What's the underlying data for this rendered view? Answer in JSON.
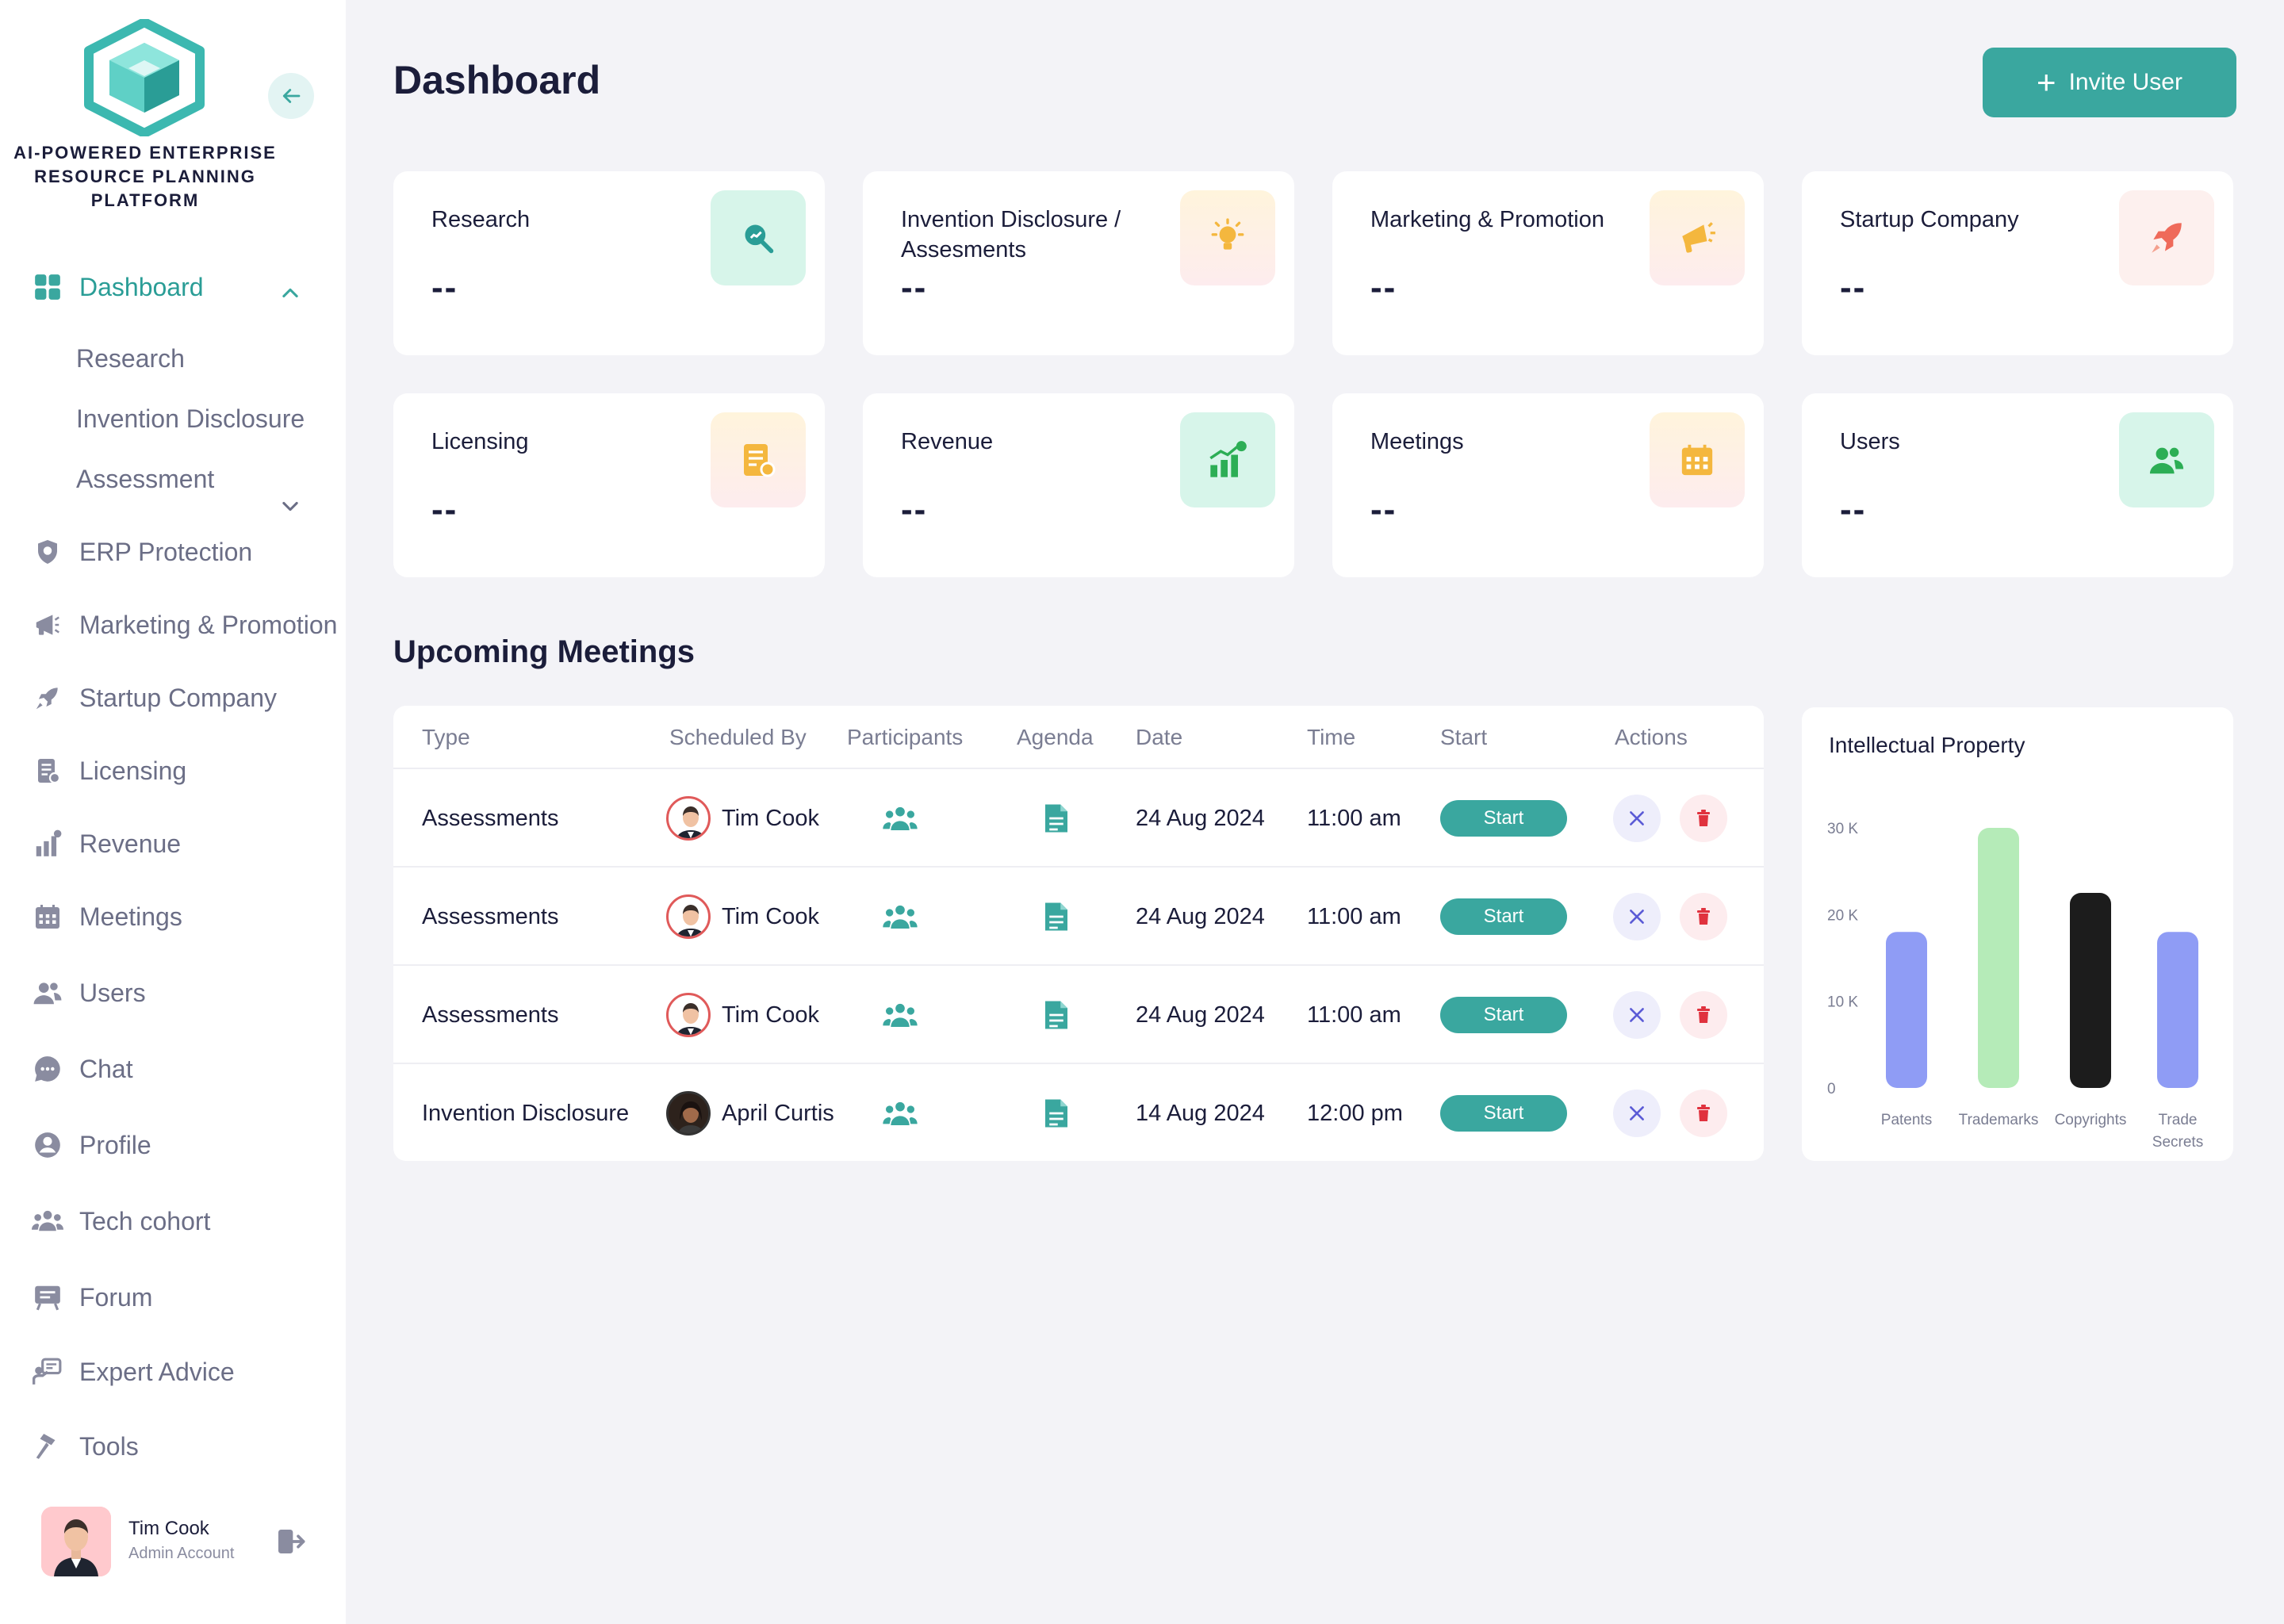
{
  "brand": {
    "line1": "AI-POWERED ENTERPRISE",
    "line2": "RESOURCE PLANNING",
    "line3": "PLATFORM",
    "accent": "#3aa79f"
  },
  "sidebar": {
    "dashboard": "Dashboard",
    "sub_items": [
      "Research",
      "Invention Disclosure",
      "Assessment"
    ],
    "items": [
      {
        "label": "ERP Protection",
        "icon": "shield-icon"
      },
      {
        "label": "Marketing & Promotion",
        "icon": "megaphone-icon"
      },
      {
        "label": "Startup Company",
        "icon": "rocket-icon"
      },
      {
        "label": "Licensing",
        "icon": "document-icon"
      },
      {
        "label": "Revenue",
        "icon": "bar-chart-icon"
      },
      {
        "label": "Meetings",
        "icon": "calendar-icon"
      },
      {
        "label": "Users",
        "icon": "users-icon"
      },
      {
        "label": "Chat",
        "icon": "chat-icon"
      },
      {
        "label": "Profile",
        "icon": "profile-icon"
      },
      {
        "label": "Tech cohort",
        "icon": "group-icon"
      },
      {
        "label": "Forum",
        "icon": "forum-icon"
      },
      {
        "label": "Expert Advice",
        "icon": "advice-icon"
      },
      {
        "label": "Tools",
        "icon": "hammer-icon"
      }
    ],
    "user": {
      "name": "Tim Cook",
      "role": "Admin Account"
    }
  },
  "header": {
    "title": "Dashboard",
    "invite_label": "Invite User"
  },
  "stats": [
    {
      "label": "Research",
      "value": "--",
      "icon": "search-trend-icon",
      "bg": "#d7f5ea",
      "color": "#2a9d96"
    },
    {
      "label": "Invention Disclosure / Assesments",
      "value": "--",
      "icon": "lightbulb-icon",
      "bg": "#fff1dc",
      "color": "#f4b73e"
    },
    {
      "label": "Marketing & Promotion",
      "value": "--",
      "icon": "megaphone-icon",
      "bg": "#fff1dc",
      "color": "#f4b73e"
    },
    {
      "label": "Startup Company",
      "value": "--",
      "icon": "rocket-icon",
      "bg": "#fdecea",
      "color": "#ef6a5a"
    },
    {
      "label": "Licensing",
      "value": "--",
      "icon": "document-icon",
      "bg": "#fff1dc",
      "color": "#f4b73e"
    },
    {
      "label": "Revenue",
      "value": "--",
      "icon": "bar-chart-icon",
      "bg": "#d7f5ea",
      "color": "#2cae55"
    },
    {
      "label": "Meetings",
      "value": "--",
      "icon": "calendar-icon",
      "bg": "#fff1dc",
      "color": "#f4b73e"
    },
    {
      "label": "Users",
      "value": "--",
      "icon": "users-icon",
      "bg": "#d7f5ea",
      "color": "#2cae55"
    }
  ],
  "meetings": {
    "title": "Upcoming Meetings",
    "columns": [
      "Type",
      "Scheduled By",
      "Participants",
      "Agenda",
      "Date",
      "Time",
      "Start",
      "Actions"
    ],
    "start_label": "Start",
    "rows": [
      {
        "type": "Assessments",
        "by": "Tim Cook",
        "date": "24 Aug 2024",
        "time": "11:00 am"
      },
      {
        "type": "Assessments",
        "by": "Tim Cook",
        "date": "24 Aug 2024",
        "time": "11:00 am"
      },
      {
        "type": "Assessments",
        "by": "Tim Cook",
        "date": "24 Aug 2024",
        "time": "11:00 am"
      },
      {
        "type": "Invention Disclosure",
        "by": "April Curtis",
        "date": "14 Aug 2024",
        "time": "12:00 pm"
      }
    ]
  },
  "chart_data": {
    "type": "bar",
    "title": "Intellectual Property",
    "categories": [
      "Patents",
      "Trademarks",
      "Copyrights",
      "Trade Secrets"
    ],
    "values": [
      18000,
      30000,
      22500,
      18000
    ],
    "colors": [
      "#8f9cf5",
      "#b5ebb8",
      "#1c1c1c",
      "#8f9cf5"
    ],
    "ylim": [
      0,
      30000
    ],
    "yticks": [
      0,
      10000,
      20000,
      30000
    ],
    "ytick_labels": [
      "0",
      "10 K",
      "20 K",
      "30 K"
    ],
    "xlabel": "",
    "ylabel": ""
  }
}
